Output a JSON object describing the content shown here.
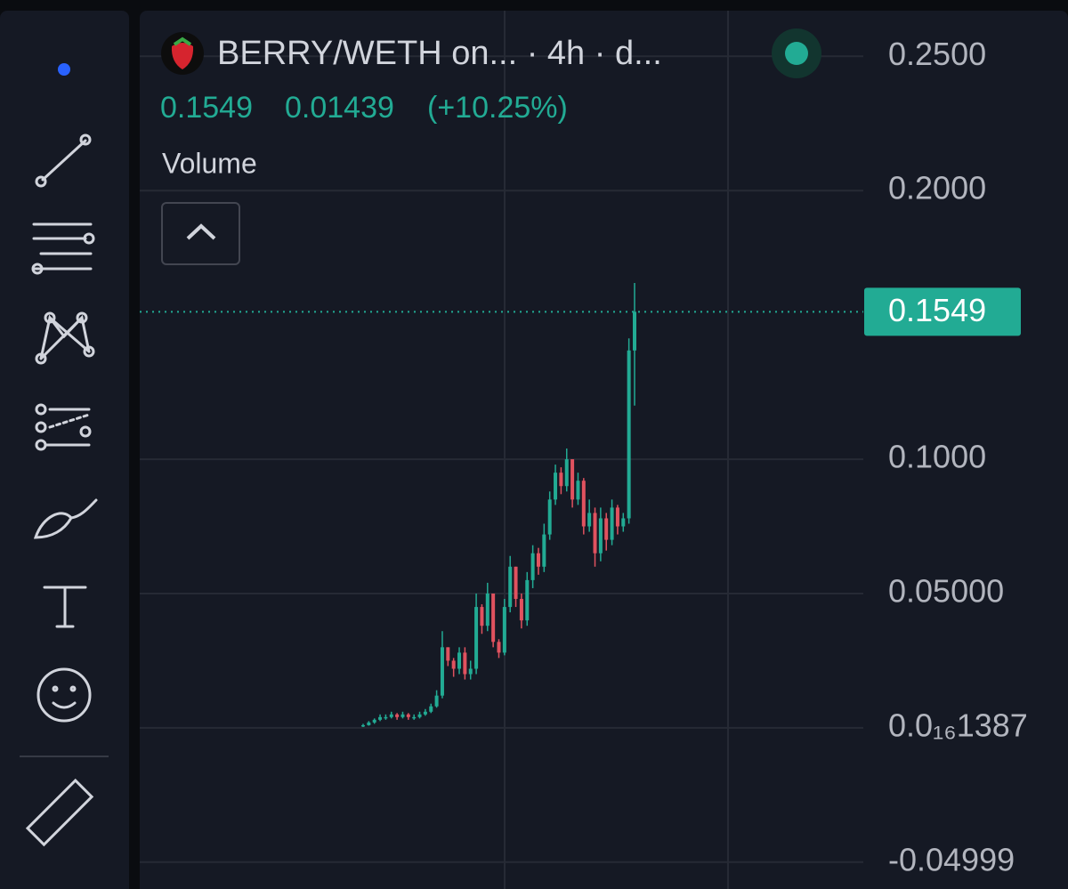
{
  "chart_data": {
    "type": "candlestick",
    "title": "BERRY/WETH on... · 4h · d...",
    "last_price": 0.1549,
    "change": 0.01439,
    "change_label": "(+10.25%)",
    "indicator": "Volume",
    "up_color": "#22ab94",
    "down_color": "#e0525f",
    "open": [
      0.0005,
      0.001,
      0.002,
      0.003,
      0.004,
      0.004,
      0.005,
      0.004,
      0.005,
      0.004,
      0.004,
      0.005,
      0.006,
      0.008,
      0.012,
      0.03,
      0.025,
      0.022,
      0.028,
      0.02,
      0.022,
      0.045,
      0.038,
      0.05,
      0.032,
      0.028,
      0.045,
      0.06,
      0.048,
      0.04,
      0.055,
      0.065,
      0.06,
      0.072,
      0.085,
      0.095,
      0.09,
      0.1,
      0.085,
      0.092,
      0.075,
      0.08,
      0.065,
      0.078,
      0.07,
      0.082,
      0.075,
      0.078,
      0.1405
    ],
    "high": [
      0.0015,
      0.0025,
      0.0035,
      0.005,
      0.005,
      0.006,
      0.0055,
      0.006,
      0.0055,
      0.005,
      0.006,
      0.007,
      0.009,
      0.014,
      0.036,
      0.03,
      0.026,
      0.03,
      0.03,
      0.025,
      0.05,
      0.046,
      0.054,
      0.05,
      0.033,
      0.048,
      0.064,
      0.06,
      0.05,
      0.058,
      0.068,
      0.067,
      0.076,
      0.088,
      0.098,
      0.097,
      0.104,
      0.1,
      0.095,
      0.093,
      0.085,
      0.082,
      0.082,
      0.08,
      0.085,
      0.083,
      0.08,
      0.145,
      0.1656
    ],
    "low": [
      0.0003,
      0.0008,
      0.0015,
      0.0025,
      0.003,
      0.0035,
      0.003,
      0.0035,
      0.003,
      0.003,
      0.0035,
      0.0045,
      0.0055,
      0.0075,
      0.011,
      0.023,
      0.019,
      0.02,
      0.018,
      0.018,
      0.02,
      0.035,
      0.036,
      0.03,
      0.026,
      0.027,
      0.043,
      0.045,
      0.037,
      0.038,
      0.052,
      0.057,
      0.058,
      0.07,
      0.083,
      0.087,
      0.088,
      0.082,
      0.083,
      0.072,
      0.073,
      0.06,
      0.062,
      0.066,
      0.068,
      0.072,
      0.073,
      0.076,
      0.12
    ],
    "close": [
      0.001,
      0.002,
      0.003,
      0.004,
      0.004,
      0.005,
      0.004,
      0.005,
      0.004,
      0.004,
      0.005,
      0.006,
      0.008,
      0.012,
      0.03,
      0.025,
      0.022,
      0.028,
      0.02,
      0.022,
      0.045,
      0.038,
      0.05,
      0.032,
      0.028,
      0.045,
      0.06,
      0.048,
      0.04,
      0.055,
      0.065,
      0.06,
      0.072,
      0.085,
      0.095,
      0.09,
      0.1,
      0.085,
      0.092,
      0.075,
      0.08,
      0.065,
      0.078,
      0.07,
      0.082,
      0.075,
      0.078,
      0.1405,
      0.1549
    ],
    "ylim": [
      -0.06,
      0.267
    ],
    "yticks": [
      {
        "value": 0.25,
        "label": "0.2500"
      },
      {
        "value": 0.2,
        "label": "0.2000"
      },
      {
        "value": 0.1,
        "label": "0.1000"
      },
      {
        "value": 0.05,
        "label": "0.05000"
      },
      {
        "value": 1.387e-17,
        "label": "0.0₁₆1387"
      },
      -0.04999
    ],
    "grid": true
  }
}
